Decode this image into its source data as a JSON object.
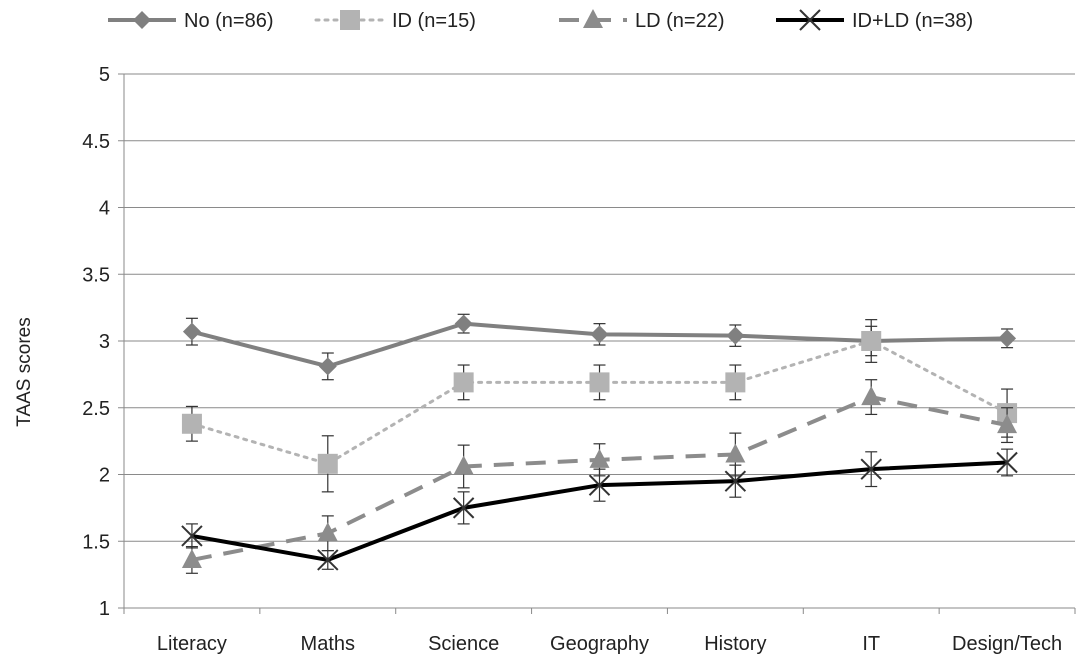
{
  "chart_data": {
    "type": "line",
    "title": "",
    "xlabel": "",
    "ylabel": "TAAS scores",
    "ylim": [
      1,
      5
    ],
    "yticks": [
      "1",
      "1.5",
      "2",
      "2.5",
      "3",
      "3.5",
      "4",
      "4.5",
      "5"
    ],
    "grid": true,
    "legend_position": "top",
    "categories": [
      "Literacy",
      "Maths",
      "Science",
      "Geography",
      "History",
      "IT",
      "Design/Tech"
    ],
    "series": [
      {
        "name": "No (n=86)",
        "values": [
          3.07,
          2.81,
          3.13,
          3.05,
          3.04,
          3.0,
          3.02
        ],
        "errors": [
          0.1,
          0.1,
          0.07,
          0.08,
          0.08,
          0.11,
          0.07
        ],
        "color": "#808080",
        "line_style": "solid",
        "marker": "diamond"
      },
      {
        "name": "ID (n=15)",
        "values": [
          2.38,
          2.08,
          2.69,
          2.69,
          2.69,
          3.0,
          2.46
        ],
        "errors": [
          0.13,
          0.21,
          0.13,
          0.13,
          0.13,
          0.16,
          0.18
        ],
        "color": "#b3b3b3",
        "line_style": "dotted",
        "marker": "square"
      },
      {
        "name": "LD (n=22)",
        "values": [
          1.36,
          1.56,
          2.06,
          2.11,
          2.15,
          2.58,
          2.37
        ],
        "errors": [
          0.1,
          0.13,
          0.16,
          0.12,
          0.16,
          0.13,
          0.13
        ],
        "color": "#8c8c8c",
        "line_style": "dashed",
        "marker": "triangle"
      },
      {
        "name": "ID+LD (n=38)",
        "values": [
          1.54,
          1.36,
          1.75,
          1.92,
          1.95,
          2.04,
          2.09
        ],
        "errors": [
          0.09,
          0.07,
          0.12,
          0.12,
          0.12,
          0.13,
          0.1
        ],
        "color": "#000000",
        "line_style": "solid",
        "marker": "x"
      }
    ]
  }
}
